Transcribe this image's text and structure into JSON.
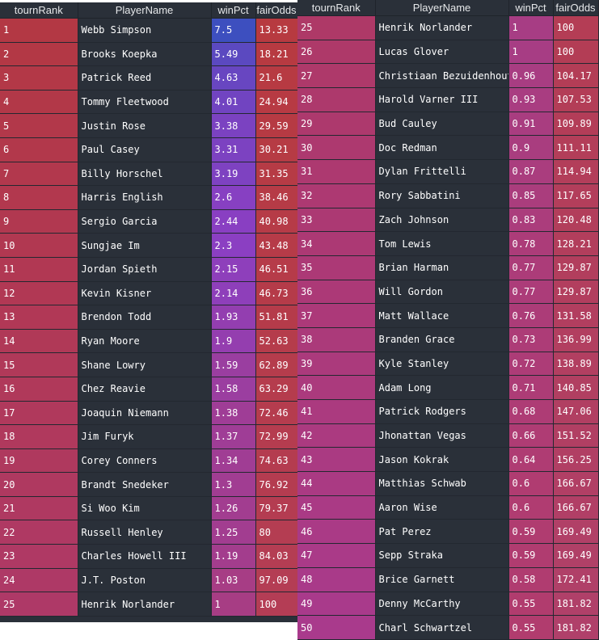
{
  "columns": [
    "tournRank",
    "PlayerName",
    "winPct",
    "fairOdds"
  ],
  "left_rows": [
    [
      "1",
      "Webb Simpson",
      "7.5",
      "13.33"
    ],
    [
      "2",
      "Brooks Koepka",
      "5.49",
      "18.21"
    ],
    [
      "3",
      "Patrick Reed",
      "4.63",
      "21.6"
    ],
    [
      "4",
      "Tommy Fleetwood",
      "4.01",
      "24.94"
    ],
    [
      "5",
      "Justin Rose",
      "3.38",
      "29.59"
    ],
    [
      "6",
      "Paul Casey",
      "3.31",
      "30.21"
    ],
    [
      "7",
      "Billy Horschel",
      "3.19",
      "31.35"
    ],
    [
      "8",
      "Harris English",
      "2.6",
      "38.46"
    ],
    [
      "9",
      "Sergio Garcia",
      "2.44",
      "40.98"
    ],
    [
      "10",
      "Sungjae Im",
      "2.3",
      "43.48"
    ],
    [
      "11",
      "Jordan Spieth",
      "2.15",
      "46.51"
    ],
    [
      "12",
      "Kevin Kisner",
      "2.14",
      "46.73"
    ],
    [
      "13",
      "Brendon Todd",
      "1.93",
      "51.81"
    ],
    [
      "14",
      "Ryan Moore",
      "1.9",
      "52.63"
    ],
    [
      "15",
      "Shane Lowry",
      "1.59",
      "62.89"
    ],
    [
      "16",
      "Chez Reavie",
      "1.58",
      "63.29"
    ],
    [
      "17",
      "Joaquin Niemann",
      "1.38",
      "72.46"
    ],
    [
      "18",
      "Jim Furyk",
      "1.37",
      "72.99"
    ],
    [
      "19",
      "Corey Conners",
      "1.34",
      "74.63"
    ],
    [
      "20",
      "Brandt Snedeker",
      "1.3",
      "76.92"
    ],
    [
      "21",
      "Si Woo Kim",
      "1.26",
      "79.37"
    ],
    [
      "22",
      "Russell Henley",
      "1.25",
      "80"
    ],
    [
      "23",
      "Charles Howell III",
      "1.19",
      "84.03"
    ],
    [
      "24",
      "J.T. Poston",
      "1.03",
      "97.09"
    ],
    [
      "25",
      "Henrik Norlander",
      "1",
      "100"
    ]
  ],
  "right_rows": [
    [
      "25",
      "Henrik Norlander",
      "1",
      "100"
    ],
    [
      "26",
      "Lucas Glover",
      "1",
      "100"
    ],
    [
      "27",
      "Christiaan Bezuidenhout",
      "0.96",
      "104.17"
    ],
    [
      "28",
      "Harold Varner III",
      "0.93",
      "107.53"
    ],
    [
      "29",
      "Bud Cauley",
      "0.91",
      "109.89"
    ],
    [
      "30",
      "Doc Redman",
      "0.9",
      "111.11"
    ],
    [
      "31",
      "Dylan Frittelli",
      "0.87",
      "114.94"
    ],
    [
      "32",
      "Rory Sabbatini",
      "0.85",
      "117.65"
    ],
    [
      "33",
      "Zach Johnson",
      "0.83",
      "120.48"
    ],
    [
      "34",
      "Tom Lewis",
      "0.78",
      "128.21"
    ],
    [
      "35",
      "Brian Harman",
      "0.77",
      "129.87"
    ],
    [
      "36",
      "Will Gordon",
      "0.77",
      "129.87"
    ],
    [
      "37",
      "Matt Wallace",
      "0.76",
      "131.58"
    ],
    [
      "38",
      "Branden Grace",
      "0.73",
      "136.99"
    ],
    [
      "39",
      "Kyle Stanley",
      "0.72",
      "138.89"
    ],
    [
      "40",
      "Adam Long",
      "0.71",
      "140.85"
    ],
    [
      "41",
      "Patrick Rodgers",
      "0.68",
      "147.06"
    ],
    [
      "42",
      "Jhonattan Vegas",
      "0.66",
      "151.52"
    ],
    [
      "43",
      "Jason Kokrak",
      "0.64",
      "156.25"
    ],
    [
      "44",
      "Matthias Schwab",
      "0.6",
      "166.67"
    ],
    [
      "45",
      "Aaron Wise",
      "0.6",
      "166.67"
    ],
    [
      "46",
      "Pat Perez",
      "0.59",
      "169.49"
    ],
    [
      "47",
      "Sepp Straka",
      "0.59",
      "169.49"
    ],
    [
      "48",
      "Brice Garnett",
      "0.58",
      "172.41"
    ],
    [
      "49",
      "Denny McCarthy",
      "0.55",
      "181.82"
    ],
    [
      "50",
      "Charl Schwartzel",
      "0.55",
      "181.82"
    ]
  ],
  "colors": {
    "name_bg": "#2a3039",
    "rank_top": "#b33844",
    "rank_bottom": "#a93a8c",
    "win_top": "#3d4fbf",
    "win_mid": "#8b3fc2",
    "win_bottom": "#b23c6c",
    "odds_top": "#b73a40",
    "odds_bottom": "#b0406a"
  }
}
